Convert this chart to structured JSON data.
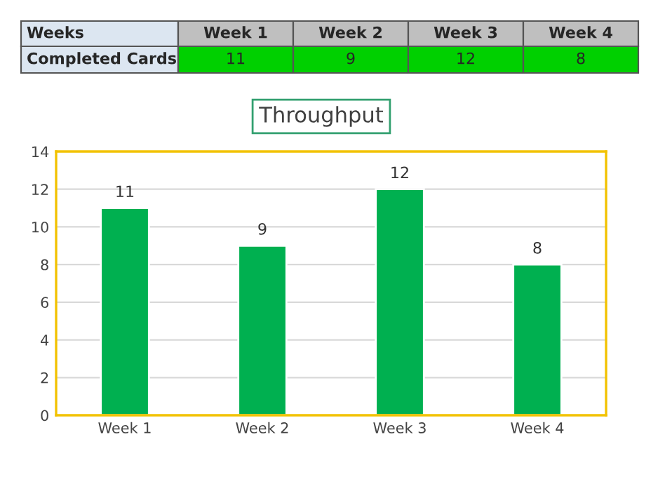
{
  "chart_data": [
    {
      "type": "other",
      "categories": [
        "Week 1",
        "Week 2",
        "Week 3",
        "Week 4"
      ],
      "values": [
        11,
        9,
        12,
        8
      ],
      "data_labels": true,
      "annotations": [
        "Weeks",
        "Completed Cards"
      ]
    },
    {
      "type": "bar",
      "title": "Throughput",
      "categories": [
        "Week 1",
        "Week 2",
        "Week 3",
        "Week 4"
      ],
      "values": [
        11,
        9,
        12,
        8
      ],
      "color": "#00b050",
      "ylim": [
        0,
        14
      ],
      "yticks": [
        0,
        2,
        4,
        6,
        8,
        10,
        12,
        14
      ],
      "grid": "y",
      "data_labels": true
    }
  ]
}
